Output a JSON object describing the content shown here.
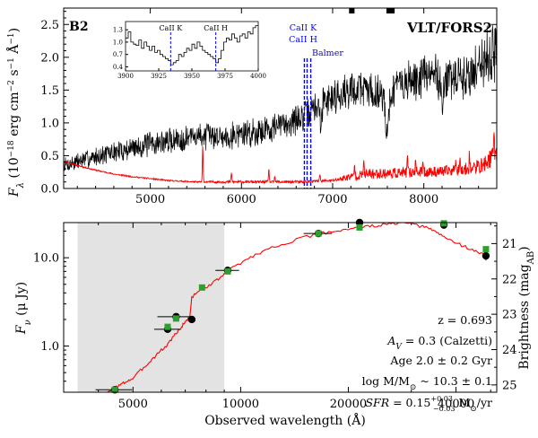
{
  "chart_data": [
    {
      "type": "line",
      "title": "",
      "panel_label": "B2",
      "instrument_label": "VLT/FORS2",
      "xlabel": "",
      "ylabel": "F_λ (10^-18 erg cm^-2 s^-1 Å^-1)",
      "ylabel_parts": {
        "symbol": "F",
        "sub": "λ",
        "open": " (10",
        "exp1": "−18",
        "mid": " erg cm",
        "exp2": "−2",
        "mid2": " s",
        "exp3": "−1",
        "mid3": " Å",
        "exp4": "−1",
        "close": ")"
      },
      "xlim": [
        4050,
        8800
      ],
      "ylim": [
        0,
        2.75
      ],
      "x_ticks": [
        5000,
        6000,
        7000,
        8000
      ],
      "x_tick_labels": [
        "5000",
        "6000",
        "7000",
        "8000"
      ],
      "y_ticks": [
        0.0,
        0.5,
        1.0,
        1.5,
        2.0,
        2.5
      ],
      "y_tick_labels": [
        "0.0",
        "0.5",
        "1.0",
        "1.5",
        "2.0",
        "2.5"
      ],
      "series": [
        {
          "name": "observed spectrum",
          "color": "#000000",
          "seed": 7,
          "x": [
            4050,
            4300,
            4600,
            4900,
            5200,
            5500,
            5800,
            6100,
            6400,
            6700,
            6900,
            7100,
            7300,
            7500,
            7700,
            7900,
            8100,
            8300,
            8500,
            8650,
            8800
          ],
          "y": [
            0.35,
            0.45,
            0.55,
            0.65,
            0.72,
            0.8,
            0.8,
            0.85,
            0.95,
            1.1,
            1.35,
            1.45,
            1.55,
            1.45,
            1.55,
            1.65,
            1.75,
            1.65,
            1.7,
            2.0,
            2.1
          ],
          "noise": [
            0.12,
            0.12,
            0.14,
            0.16,
            0.18,
            0.17,
            0.18,
            0.2,
            0.2,
            0.2,
            0.22,
            0.24,
            0.26,
            0.26,
            0.26,
            0.28,
            0.3,
            0.3,
            0.32,
            0.38,
            0.45
          ],
          "features": [
            {
              "x": 7600,
              "depth": 0.7,
              "width": 25
            },
            {
              "x": 6870,
              "depth": 0.45,
              "width": 12
            },
            {
              "x": 8200,
              "depth": 0.35,
              "width": 20
            }
          ]
        },
        {
          "name": "noise spectrum",
          "color": "#ff0000",
          "seed": 11,
          "x": [
            4050,
            4200,
            4400,
            4600,
            4800,
            5000,
            5200,
            5500,
            5800,
            6200,
            6600,
            7000,
            7200,
            7400,
            7800,
            8200,
            8500,
            8650,
            8800
          ],
          "y": [
            0.42,
            0.35,
            0.28,
            0.22,
            0.18,
            0.15,
            0.12,
            0.1,
            0.1,
            0.1,
            0.1,
            0.12,
            0.18,
            0.22,
            0.24,
            0.26,
            0.3,
            0.35,
            0.55
          ],
          "noise": [
            0.01,
            0.01,
            0.01,
            0.01,
            0.01,
            0.01,
            0.01,
            0.01,
            0.02,
            0.02,
            0.02,
            0.02,
            0.06,
            0.08,
            0.08,
            0.08,
            0.1,
            0.12,
            0.15
          ],
          "spikes": [
            {
              "x": 5575,
              "h": 0.55
            },
            {
              "x": 5890,
              "h": 0.15
            },
            {
              "x": 6300,
              "h": 0.2
            },
            {
              "x": 6365,
              "h": 0.08
            },
            {
              "x": 6860,
              "h": 0.12
            },
            {
              "x": 7240,
              "h": 0.18
            },
            {
              "x": 7340,
              "h": 0.2
            },
            {
              "x": 7820,
              "h": 0.22
            },
            {
              "x": 7910,
              "h": 0.25
            },
            {
              "x": 7990,
              "h": 0.18
            },
            {
              "x": 8350,
              "h": 0.22
            },
            {
              "x": 8400,
              "h": 0.2
            },
            {
              "x": 8500,
              "h": 0.24
            },
            {
              "x": 8770,
              "h": 0.35
            }
          ]
        }
      ],
      "line_markers": [
        {
          "label": "CaII K",
          "x": 6690
        },
        {
          "label": "CaII H",
          "x": 6720
        },
        {
          "label": "Balmer",
          "x": 6760
        }
      ],
      "telluric_marks": [
        {
          "x1": 7180,
          "x2": 7240
        },
        {
          "x1": 7590,
          "x2": 7680
        }
      ],
      "inset": {
        "xlim": [
          3900,
          4000
        ],
        "ylim": [
          0.3,
          1.5
        ],
        "x_ticks": [
          3900,
          3925,
          3950,
          3975,
          4000
        ],
        "x_tick_labels": [
          "3900",
          "3925",
          "3950",
          "3975",
          "4000"
        ],
        "y_ticks": [
          0.4,
          0.7,
          1.0,
          1.3
        ],
        "y_tick_labels": [
          "0.4",
          "0.7",
          "1.0",
          "1.3"
        ],
        "markers": [
          {
            "label": "CaII K",
            "x": 3934
          },
          {
            "label": "CaII H",
            "x": 3968
          }
        ],
        "step_x": [
          3900,
          3902,
          3904,
          3906,
          3908,
          3910,
          3912,
          3914,
          3916,
          3918,
          3920,
          3922,
          3924,
          3926,
          3928,
          3930,
          3932,
          3934,
          3936,
          3938,
          3940,
          3942,
          3944,
          3946,
          3948,
          3950,
          3952,
          3954,
          3956,
          3958,
          3960,
          3962,
          3964,
          3966,
          3968,
          3970,
          3972,
          3974,
          3976,
          3978,
          3980,
          3982,
          3984,
          3986,
          3988,
          3990,
          3992,
          3994,
          3996,
          3998
        ],
        "step_y": [
          1.1,
          1.25,
          1.0,
          0.95,
          0.92,
          1.05,
          0.85,
          1.0,
          0.9,
          0.8,
          0.9,
          0.75,
          0.8,
          0.7,
          0.65,
          0.6,
          0.55,
          0.45,
          0.5,
          0.55,
          0.7,
          0.65,
          0.75,
          0.85,
          0.8,
          0.95,
          0.85,
          1.0,
          0.9,
          0.8,
          0.75,
          0.7,
          0.65,
          0.6,
          0.5,
          0.6,
          0.8,
          1.0,
          1.1,
          1.05,
          1.2,
          1.1,
          1.0,
          1.15,
          1.2,
          1.1,
          1.25,
          1.2,
          1.35,
          1.4
        ]
      }
    },
    {
      "type": "scatter",
      "title": "",
      "xlabel": "Observed wavelength (Å)",
      "ylabel": "F_ν (μ Jy)",
      "ylabel_parts": {
        "symbol": "F",
        "sub": "ν",
        "rest": " (μ Jy)"
      },
      "ylabel_right": "Brightness (mag_AB)",
      "ylabel_right_parts": {
        "main": "Brightness (mag",
        "sub": "AB",
        "close": ")"
      },
      "x_scale": "log",
      "y_scale": "log",
      "xlim": [
        3200,
        52000
      ],
      "ylim": [
        0.3,
        25
      ],
      "x_ticks": [
        5000,
        10000,
        20000,
        40000
      ],
      "x_tick_labels": [
        "5000",
        "10000",
        "20000",
        "40000"
      ],
      "y_ticks": [
        1.0,
        10.0
      ],
      "y_tick_labels": [
        "1.0",
        "10.0"
      ],
      "right_ticks": [
        21,
        22,
        23,
        24,
        25
      ],
      "right_tick_labels": [
        "21",
        "22",
        "23",
        "24",
        "25"
      ],
      "shaded_region": [
        3500,
        9000
      ],
      "model_sed": {
        "color": "#ff0000",
        "x": [
          4200,
          4400,
          4600,
          4800,
          5000,
          5300,
          5600,
          5900,
          6200,
          6500,
          6800,
          7000,
          7200,
          7300,
          7500,
          8000,
          8500,
          9000,
          9500,
          10500,
          11500,
          13000,
          15000,
          17000,
          19000,
          21000,
          23000,
          25000,
          27000,
          29000,
          31000,
          33000,
          35000,
          37000,
          40000,
          43000,
          46000,
          49000
        ],
        "y": [
          0.28,
          0.33,
          0.36,
          0.4,
          0.43,
          0.55,
          0.68,
          0.85,
          1.0,
          1.3,
          1.6,
          1.9,
          2.1,
          3.5,
          4.0,
          4.7,
          5.4,
          6.5,
          7.8,
          9.8,
          11.8,
          14.2,
          16.9,
          19.0,
          20.5,
          22.0,
          22.7,
          23.5,
          24.5,
          25.0,
          23.2,
          22.0,
          20.0,
          17.2,
          14.8,
          13.0,
          11.5,
          10.6
        ]
      },
      "photometry": [
        {
          "x": 4450,
          "y": 0.32,
          "xerr_lo": 520,
          "xerr_hi": 520,
          "yerr": 0.02
        },
        {
          "x": 6250,
          "y": 1.55,
          "xerr_lo": 520,
          "xerr_hi": 520,
          "yerr": 0.1
        },
        {
          "x": 6600,
          "y": 2.15,
          "xerr_lo": 750,
          "xerr_hi": 750,
          "yerr": 0.15
        },
        {
          "x": 7300,
          "y": 2.0,
          "xerr_lo": 0,
          "xerr_hi": 0,
          "yerr": 0.15
        },
        {
          "x": 9200,
          "y": 7.2,
          "xerr_lo": 700,
          "xerr_hi": 700,
          "yerr": 0.4
        },
        {
          "x": 16500,
          "y": 18.8,
          "xerr_lo": 1500,
          "xerr_hi": 1500,
          "yerr": 0.6
        },
        {
          "x": 21500,
          "y": 25.0,
          "xerr_lo": 1500,
          "xerr_hi": 1500,
          "yerr": 1.2
        },
        {
          "x": 37000,
          "y": 23.5,
          "xerr_lo": 0,
          "xerr_hi": 0,
          "yerr": 0.9
        },
        {
          "x": 48500,
          "y": 10.5,
          "xerr_lo": 0,
          "xerr_hi": 0,
          "yerr": 1.2
        }
      ],
      "model_points": [
        {
          "x": 4450,
          "y": 0.32
        },
        {
          "x": 6250,
          "y": 1.65
        },
        {
          "x": 6600,
          "y": 2.05
        },
        {
          "x": 7800,
          "y": 4.6
        },
        {
          "x": 9200,
          "y": 7.0
        },
        {
          "x": 16500,
          "y": 18.8
        },
        {
          "x": 21500,
          "y": 22.0
        },
        {
          "x": 37000,
          "y": 24.5
        },
        {
          "x": 48500,
          "y": 12.5
        }
      ],
      "model_point_color": "#2ca02c",
      "annotations": {
        "redshift": "z = 0.693",
        "extinction": "A_V = 0.3 (Calzetti)",
        "age": "Age   2.0 ± 0.2 Gyr",
        "mass": "log M/M_⊙ ~ 10.3 ± 0.1",
        "sfr": "SFR = 0.15 (+0.03 / −0.03) M_⊙/yr"
      },
      "annotation_parts": {
        "av_pre": "A",
        "av_sub": "V",
        "av_post": " = 0.3 (Calzetti)",
        "mass_pre": "log M/M",
        "mass_sub": "⊙",
        "mass_post": " ~ 10.3 ± 0.1",
        "sfr_pre": "SFR",
        "sfr_eq": " = 0.15",
        "sfr_up": "+0.03",
        "sfr_lo": "−0.03",
        "sfr_unit": " M",
        "sfr_unit_sub": "⊙",
        "sfr_post": "/yr"
      }
    }
  ]
}
